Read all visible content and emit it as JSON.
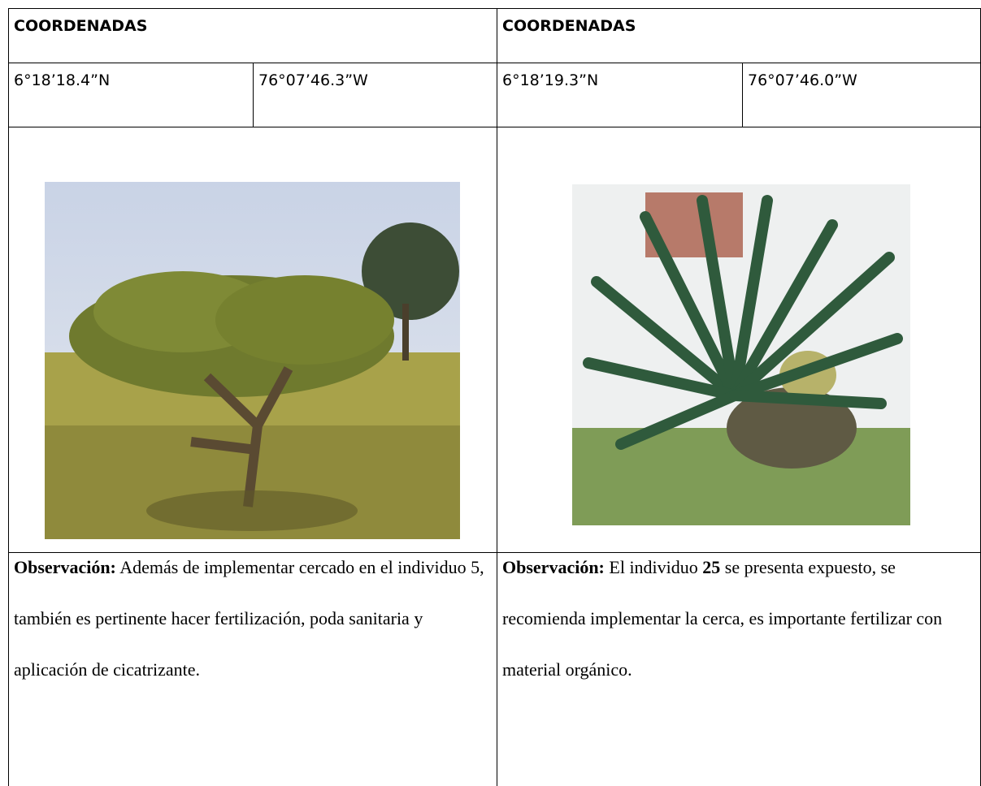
{
  "columns": [
    {
      "header": "COORDENADAS",
      "latitude": "6°18’18.4”N",
      "longitude": "76°07’46.3”W",
      "observation": {
        "label": "Observación:",
        "text": "Además de implementar cercado en el individuo 5, también es pertinente hacer fertilización, poda sanitaria y aplicación de cicatrizante."
      }
    },
    {
      "header": "COORDENADAS",
      "latitude": "6°18’19.3”N",
      "longitude": "76°07’46.0”W",
      "observation": {
        "label": "Observación:",
        "text_before": "El individuo",
        "individual": "25",
        "text_after": "se presenta expuesto, se recomienda implementar la cerca, es importante fertilizar con material orgánico."
      }
    }
  ]
}
